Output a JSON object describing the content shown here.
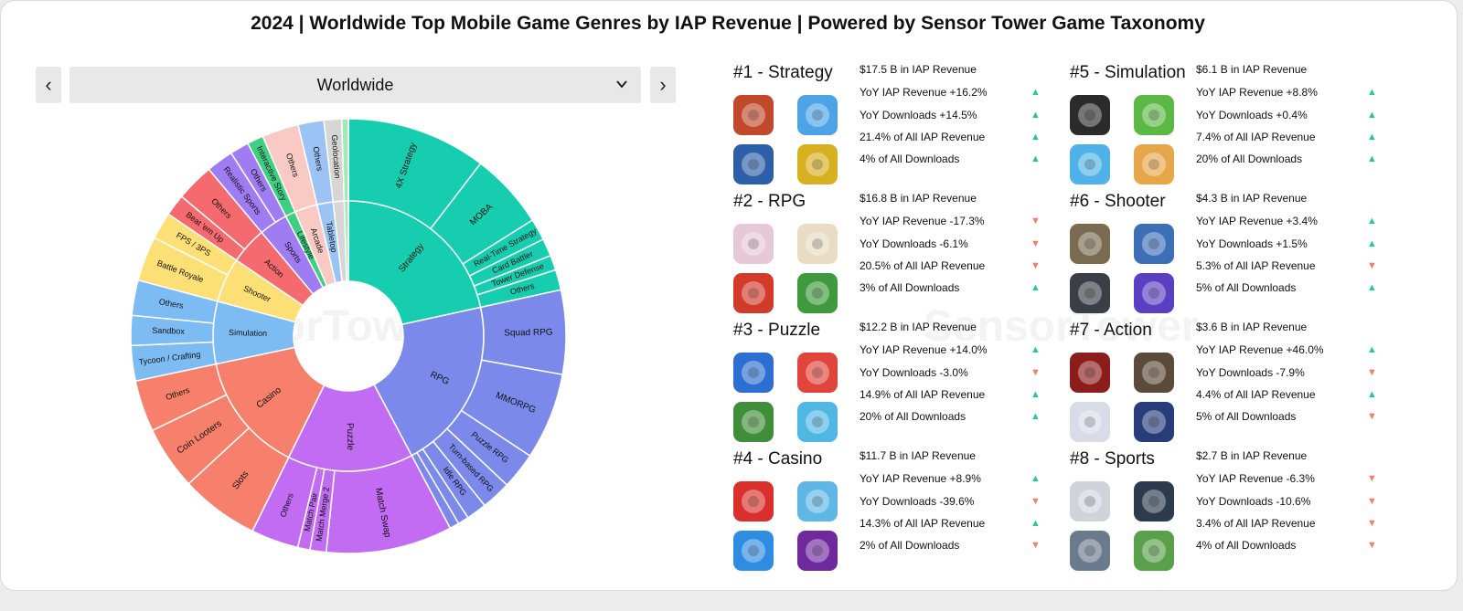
{
  "title": "2024 | Worldwide Top Mobile Game Genres by IAP Revenue | Powered by Sensor Tower Game Taxonomy",
  "region_selector": {
    "value": "Worldwide",
    "prev_icon": "chevron-left-icon",
    "next_icon": "chevron-right-icon",
    "dropdown_icon": "chevron-down-icon"
  },
  "watermark": "SensorTower",
  "colors": {
    "strategy": "#16cdb0",
    "rpg": "#7b89ea",
    "puzzle": "#c26cf3",
    "casino": "#f6806c",
    "simulation": "#7dbcf3",
    "shooter": "#fce076",
    "action": "#f56a6f",
    "sports": "#a07cf3",
    "lifestyle": "#3ecf82",
    "arcade": "#f9c9c4",
    "tabletop": "#9bc4f5",
    "other_small": "#d6d6d6",
    "up": "#28c7a4",
    "down": "#f08069"
  },
  "chart_data": {
    "type": "sunburst",
    "unit": "Share of 2024 worldwide IAP revenue (%), estimated from slice angles",
    "genres": [
      {
        "name": "Strategy",
        "value": 21.4,
        "color": "#16cdb0",
        "children": [
          {
            "name": "4X Strategy",
            "value": 10.3
          },
          {
            "name": "MOBA",
            "value": 5.6
          },
          {
            "name": "Real-Time Strategy",
            "value": 1.6
          },
          {
            "name": "Card Battler",
            "value": 1.3
          },
          {
            "name": "Tower Defense",
            "value": 1.1
          },
          {
            "name": "Others",
            "value": 1.5
          }
        ]
      },
      {
        "name": "RPG",
        "value": 20.5,
        "color": "#7b89ea",
        "children": [
          {
            "name": "Squad RPG",
            "value": 6.2
          },
          {
            "name": "MMORPG",
            "value": 6.4
          },
          {
            "name": "Puzzle RPG",
            "value": 2.7
          },
          {
            "name": "Turn-based RPG",
            "value": 2.2
          },
          {
            "name": "Idle RPG",
            "value": 1.5
          },
          {
            "name": "",
            "value": 0.8
          },
          {
            "name": "",
            "value": 0.7
          }
        ]
      },
      {
        "name": "Puzzle",
        "value": 14.9,
        "color": "#c26cf3",
        "children": [
          {
            "name": "Match Swap",
            "value": 9.3
          },
          {
            "name": "Match Merge 2",
            "value": 1.2
          },
          {
            "name": "Match Pair",
            "value": 0.9
          },
          {
            "name": "Others",
            "value": 3.5
          }
        ]
      },
      {
        "name": "Casino",
        "value": 14.3,
        "color": "#f6806c",
        "children": [
          {
            "name": "Slots",
            "value": 5.8
          },
          {
            "name": "Coin Looters",
            "value": 4.7
          },
          {
            "name": "Others",
            "value": 3.8
          }
        ]
      },
      {
        "name": "Simulation",
        "value": 7.4,
        "color": "#7dbcf3",
        "children": [
          {
            "name": "Tycoon / Crafting",
            "value": 2.6
          },
          {
            "name": "Sandbox",
            "value": 2.2
          },
          {
            "name": "Others",
            "value": 2.6
          }
        ]
      },
      {
        "name": "Shooter",
        "value": 5.3,
        "color": "#fce076",
        "children": [
          {
            "name": "Battle Royale",
            "value": 3.3
          },
          {
            "name": "FPS / 3PS",
            "value": 2.0
          }
        ]
      },
      {
        "name": "Action",
        "value": 4.4,
        "color": "#f56a6f",
        "children": [
          {
            "name": "Beat 'em Up",
            "value": 1.6
          },
          {
            "name": "Others",
            "value": 2.8
          }
        ]
      },
      {
        "name": "Sports",
        "value": 3.4,
        "color": "#a07cf3",
        "children": [
          {
            "name": "Realistic Sports",
            "value": 2.0
          },
          {
            "name": "Others",
            "value": 1.4
          }
        ]
      },
      {
        "name": "Lifestyle",
        "value": 1.2,
        "color": "#3ecf82",
        "children": [
          {
            "name": "Interactive Story",
            "value": 1.2
          }
        ]
      },
      {
        "name": "Arcade",
        "value": 2.7,
        "color": "#f9c9c4",
        "children": [
          {
            "name": "Others",
            "value": 2.7
          }
        ]
      },
      {
        "name": "Tabletop",
        "value": 1.9,
        "color": "#9bc4f5",
        "children": [
          {
            "name": "Others",
            "value": 1.9
          }
        ]
      },
      {
        "name": "",
        "value": 1.3,
        "color": "#d6d6d6",
        "children": [
          {
            "name": "Geolocation",
            "value": 1.3
          }
        ]
      },
      {
        "name": "",
        "value": 0.5,
        "color": "#a5e8b5",
        "children": [
          {
            "name": "",
            "value": 0.5
          }
        ]
      }
    ]
  },
  "genre_cards": [
    {
      "rank_title": "#1 - Strategy",
      "revenue": "$17.5 B in IAP Revenue",
      "stats": [
        {
          "text": "YoY IAP Revenue +16.2%",
          "dir": "up"
        },
        {
          "text": "YoY Downloads +14.5%",
          "dir": "up"
        },
        {
          "text": "21.4% of All IAP Revenue",
          "dir": "up"
        },
        {
          "text": "4% of All Downloads",
          "dir": "up"
        }
      ],
      "icons": [
        {
          "name": "honor-of-kings-icon",
          "color": "#c0492b"
        },
        {
          "name": "royal-match-runner-icon",
          "color": "#4ea3e6"
        },
        {
          "name": "whiteout-survival-icon",
          "color": "#2c5fa8"
        },
        {
          "name": "brawl-stars-icon",
          "color": "#d7b021"
        }
      ]
    },
    {
      "rank_title": "#2 - RPG",
      "revenue": "$16.8 B in IAP Revenue",
      "stats": [
        {
          "text": "YoY IAP Revenue -17.3%",
          "dir": "down"
        },
        {
          "text": "YoY Downloads -6.1%",
          "dir": "down"
        },
        {
          "text": "20.5% of All IAP Revenue",
          "dir": "down"
        },
        {
          "text": "3% of All Downloads",
          "dir": "up"
        }
      ],
      "icons": [
        {
          "name": "honkai-star-rail-icon",
          "color": "#e7c8d8"
        },
        {
          "name": "genshin-impact-icon",
          "color": "#e9dcc2"
        },
        {
          "name": "monster-strike-icon",
          "color": "#d23b2a"
        },
        {
          "name": "mushroom-game-icon",
          "color": "#3e9a3c"
        }
      ]
    },
    {
      "rank_title": "#3 - Puzzle",
      "revenue": "$12.2 B in IAP Revenue",
      "stats": [
        {
          "text": "YoY IAP Revenue +14.0%",
          "dir": "up"
        },
        {
          "text": "YoY Downloads -3.0%",
          "dir": "down"
        },
        {
          "text": "14.9% of All IAP Revenue",
          "dir": "up"
        },
        {
          "text": "20% of All Downloads",
          "dir": "up"
        }
      ],
      "icons": [
        {
          "name": "royal-match-icon",
          "color": "#2d6fd0"
        },
        {
          "name": "candy-crush-icon",
          "color": "#e0443b"
        },
        {
          "name": "homescapes-icon",
          "color": "#3f8f3a"
        },
        {
          "name": "gardenscapes-icon",
          "color": "#4fb7e4"
        }
      ]
    },
    {
      "rank_title": "#4 - Casino",
      "revenue": "$11.7 B in IAP Revenue",
      "stats": [
        {
          "text": "YoY IAP Revenue +8.9%",
          "dir": "up"
        },
        {
          "text": "YoY Downloads -39.6%",
          "dir": "down"
        },
        {
          "text": "14.3% of All IAP Revenue",
          "dir": "up"
        },
        {
          "text": "2% of All Downloads",
          "dir": "down"
        }
      ],
      "icons": [
        {
          "name": "monopoly-go-icon",
          "color": "#d9302b"
        },
        {
          "name": "coin-master-icon",
          "color": "#5fb7e6"
        },
        {
          "name": "bingo-blitz-icon",
          "color": "#2e8de0"
        },
        {
          "name": "jackpot-party-icon",
          "color": "#6e2a9c"
        }
      ]
    },
    {
      "rank_title": "#5 - Simulation",
      "revenue": "$6.1 B in IAP Revenue",
      "stats": [
        {
          "text": "YoY IAP Revenue +8.8%",
          "dir": "up"
        },
        {
          "text": "YoY Downloads +0.4%",
          "dir": "up"
        },
        {
          "text": "7.4% of All IAP Revenue",
          "dir": "up"
        },
        {
          "text": "20% of All Downloads",
          "dir": "up"
        }
      ],
      "icons": [
        {
          "name": "roblox-icon",
          "color": "#2b2b2b"
        },
        {
          "name": "township-icon",
          "color": "#5cb845"
        },
        {
          "name": "hay-day-icon",
          "color": "#4fb2e8"
        },
        {
          "name": "family-island-icon",
          "color": "#e8a64a"
        }
      ]
    },
    {
      "rank_title": "#6 - Shooter",
      "revenue": "$4.3 B in IAP Revenue",
      "stats": [
        {
          "text": "YoY IAP Revenue +3.4%",
          "dir": "up"
        },
        {
          "text": "YoY Downloads +1.5%",
          "dir": "up"
        },
        {
          "text": "5.3% of All IAP Revenue",
          "dir": "down"
        },
        {
          "text": "5% of All Downloads",
          "dir": "up"
        }
      ],
      "icons": [
        {
          "name": "pubg-mobile-icon",
          "color": "#7a6a4f"
        },
        {
          "name": "peacekeeper-elite-icon",
          "color": "#3d6fb8"
        },
        {
          "name": "call-of-duty-mobile-icon",
          "color": "#3a3f45"
        },
        {
          "name": "free-fire-icon",
          "color": "#5a3fc2"
        }
      ]
    },
    {
      "rank_title": "#7 - Action",
      "revenue": "$3.6 B in IAP Revenue",
      "stats": [
        {
          "text": "YoY IAP Revenue +46.0%",
          "dir": "up"
        },
        {
          "text": "YoY Downloads -7.9%",
          "dir": "down"
        },
        {
          "text": "4.4% of All IAP Revenue",
          "dir": "up"
        },
        {
          "text": "5% of All Downloads",
          "dir": "down"
        }
      ],
      "icons": [
        {
          "name": "dungeon-fighter-icon",
          "color": "#8b1d1d"
        },
        {
          "name": "identity-v-icon",
          "color": "#5c4a3a"
        },
        {
          "name": "honkai-impact-icon",
          "color": "#d7dce6"
        },
        {
          "name": "dragon-ball-icon",
          "color": "#283c7a"
        }
      ]
    },
    {
      "rank_title": "#8 - Sports",
      "revenue": "$2.7 B in IAP Revenue",
      "stats": [
        {
          "text": "YoY IAP Revenue -6.3%",
          "dir": "down"
        },
        {
          "text": "YoY Downloads -10.6%",
          "dir": "down"
        },
        {
          "text": "3.4% of All IAP Revenue",
          "dir": "down"
        },
        {
          "text": "4% of All Downloads",
          "dir": "down"
        }
      ],
      "icons": [
        {
          "name": "efootball-icon",
          "color": "#cfd4da"
        },
        {
          "name": "fc-mobile-icon",
          "color": "#2c3b4e"
        },
        {
          "name": "pro-yakyu-spirits-icon",
          "color": "#6b7a8f"
        },
        {
          "name": "golf-clash-icon",
          "color": "#5aa04a"
        }
      ]
    }
  ]
}
